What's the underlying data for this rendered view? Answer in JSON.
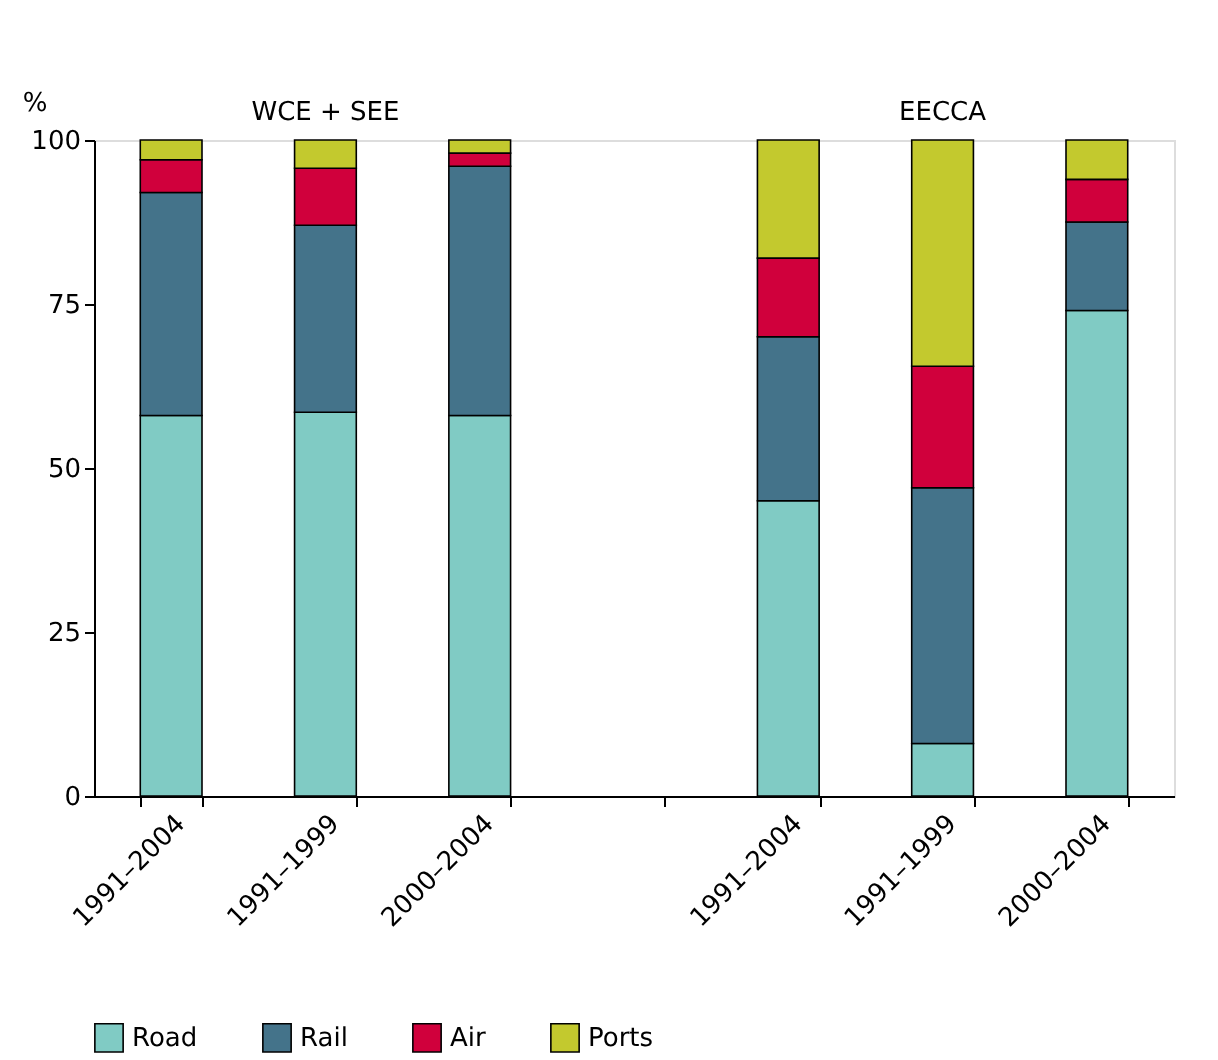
{
  "chart_data": {
    "type": "bar",
    "stacked": true,
    "ylabel": "%",
    "categories": [
      "1991–2004",
      "1991–1999",
      "2000–2004",
      null,
      "1991–2004",
      "1991–1999",
      "2000–2004"
    ],
    "series": [
      {
        "name": "Road",
        "color": "#80cbc4",
        "values": [
          58,
          58.5,
          58,
          null,
          45,
          8,
          74
        ]
      },
      {
        "name": "Rail",
        "color": "#44738a",
        "values": [
          34,
          28.5,
          38,
          null,
          25,
          39,
          13.5
        ]
      },
      {
        "name": "Air",
        "color": "#d0003c",
        "values": [
          5,
          8.7,
          2,
          null,
          12,
          18.5,
          6.5
        ]
      },
      {
        "name": "Ports",
        "color": "#c3c92e",
        "values": [
          3,
          4.3,
          2,
          null,
          18,
          34.5,
          6
        ]
      }
    ],
    "ylim": [
      0,
      100
    ],
    "yticks": [
      0,
      25,
      50,
      75,
      100
    ],
    "grid": false,
    "legend": "bottom",
    "annotations": [
      "WCE + SEE",
      "EECCA"
    ]
  }
}
